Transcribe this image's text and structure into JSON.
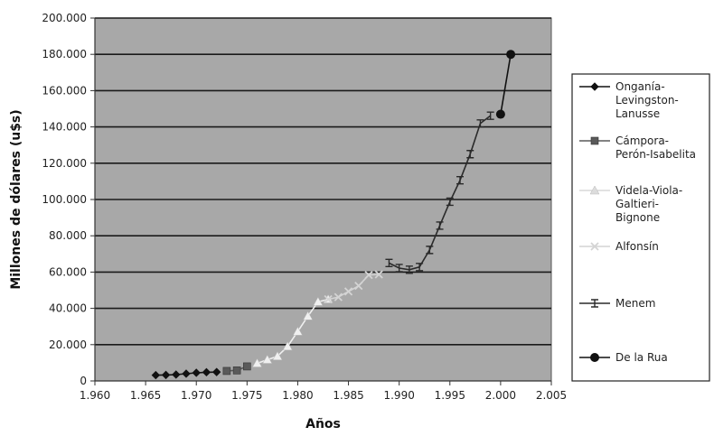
{
  "chart_data": {
    "type": "line",
    "title": "",
    "xlabel": "Años",
    "ylabel": "Millones de dólares (u$s)",
    "xlim": [
      1960,
      2005
    ],
    "ylim": [
      0,
      200000
    ],
    "x_ticks": [
      1960,
      1965,
      1970,
      1975,
      1980,
      1985,
      1990,
      1995,
      2000,
      2005
    ],
    "x_tick_labels": [
      "1.960",
      "1.965",
      "1.970",
      "1.975",
      "1.980",
      "1.985",
      "1.990",
      "1.995",
      "2.000",
      "2.005"
    ],
    "y_ticks": [
      0,
      20000,
      40000,
      60000,
      80000,
      100000,
      120000,
      140000,
      160000,
      180000,
      200000
    ],
    "y_tick_labels": [
      "0",
      "20.000",
      "40.000",
      "60.000",
      "80.000",
      "100.000",
      "120.000",
      "140.000",
      "160.000",
      "180.000",
      "200.000"
    ],
    "grid": true,
    "plot_background": "#a8a8a8",
    "legend_position": "right",
    "series": [
      {
        "name": "Onganía-Levingston-Lanusse",
        "legend_lines": [
          "Onganía-",
          "Levingston-",
          "Lanusse"
        ],
        "color": "#111111",
        "marker": "diamond",
        "x": [
          1966,
          1967,
          1968,
          1969,
          1970,
          1971,
          1972
        ],
        "y": [
          3200,
          3300,
          3500,
          4000,
          4500,
          4800,
          4900
        ]
      },
      {
        "name": "Cámpora-Perón-Isabelita",
        "legend_lines": [
          "Cámpora-",
          "Perón-Isabelita"
        ],
        "color": "#5a5a5a",
        "marker": "square",
        "x": [
          1973,
          1974,
          1975
        ],
        "y": [
          5500,
          5800,
          8000
        ]
      },
      {
        "name": "Videla-Viola-Galtieri-Bignone",
        "legend_lines": [
          "Videla-Viola-",
          "Galtieri-",
          "Bignone"
        ],
        "color": "#f0f0f0",
        "marker": "triangle",
        "x": [
          1976,
          1977,
          1978,
          1979,
          1980,
          1981,
          1982,
          1983
        ],
        "y": [
          9700,
          11700,
          13600,
          19000,
          27200,
          35700,
          43600,
          45000
        ]
      },
      {
        "name": "Alfonsín",
        "legend_lines": [
          "Alfonsín"
        ],
        "color": "#d4d4d4",
        "marker": "x",
        "x": [
          1983,
          1984,
          1985,
          1986,
          1987,
          1988
        ],
        "y": [
          45000,
          46200,
          49300,
          52400,
          58400,
          58700
        ]
      },
      {
        "name": "Menem",
        "legend_lines": [
          "Menem"
        ],
        "color": "#2a2a2a",
        "marker": "cross",
        "x": [
          1989,
          1990,
          1991,
          1992,
          1993,
          1994,
          1995,
          1996,
          1997,
          1998,
          1999
        ],
        "y": [
          65000,
          62200,
          61300,
          62800,
          72200,
          85600,
          98800,
          110600,
          125000,
          141900,
          146200
        ]
      },
      {
        "name": "De la Rua",
        "legend_lines": [
          "De la Rua"
        ],
        "color": "#111111",
        "marker": "circle",
        "x": [
          2000,
          2001
        ],
        "y": [
          147000,
          180000
        ]
      }
    ]
  }
}
